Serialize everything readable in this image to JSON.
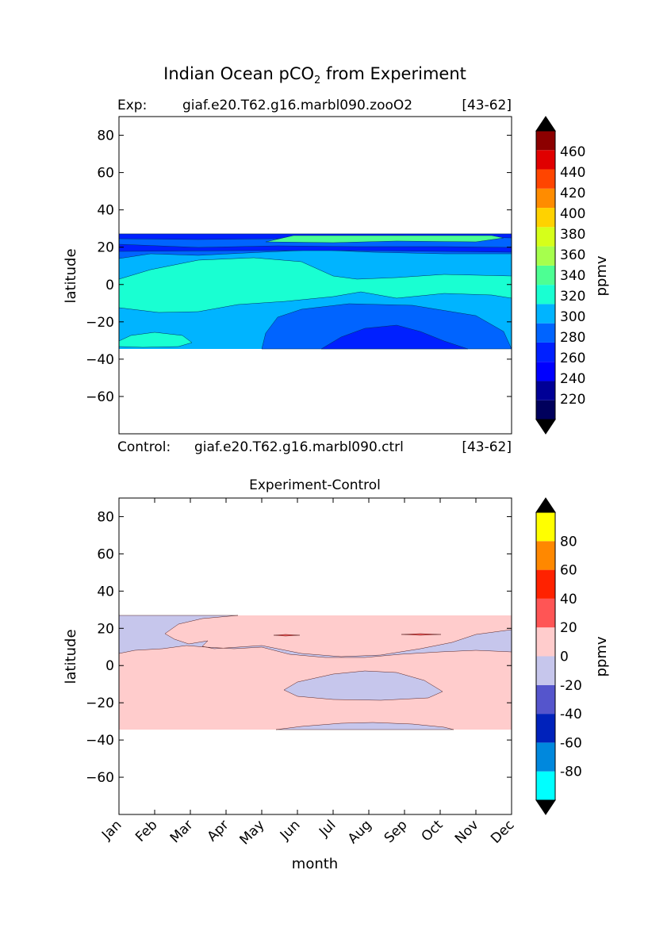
{
  "figure": {
    "title_main": "Indian Ocean pCO",
    "title_sub": "2",
    "title_tail": " from Experiment"
  },
  "chart_data": [
    {
      "type": "heatmap",
      "panel": "top",
      "subtitle_left": "Exp:",
      "subtitle_center": "giaf.e20.T62.g16.marbl090.zooO2",
      "subtitle_right": "[43-62]",
      "xlabel": "",
      "ylabel": "latitude",
      "xlim": [
        0,
        11
      ],
      "ylim": [
        -80,
        90
      ],
      "yticks": [
        80,
        60,
        40,
        20,
        0,
        -20,
        -40,
        -60
      ],
      "ytick_labels": [
        "80",
        "60",
        "40",
        "20",
        "0",
        "−20",
        "−40",
        "−60"
      ],
      "data_lat_range": [
        -34,
        27
      ],
      "approx_regions": [
        {
          "level": "240-260",
          "months": "Jul-Oct",
          "lat": "-20 to -34"
        },
        {
          "level": "260-280",
          "months": "May-Dec",
          "lat": "-5 to -34"
        },
        {
          "level": "280-300",
          "months": "Jan-Dec",
          "lat": "-34 to 20"
        },
        {
          "level": "300-320",
          "months": "Feb-Jul",
          "lat": "-15 to 15"
        },
        {
          "level": "320-340",
          "months": "May-Oct",
          "lat": "24 to 27"
        },
        {
          "level": "240-280",
          "months": "Jan-Dec",
          "lat": "17 to 27"
        }
      ],
      "colorbar": {
        "label": "ppmv",
        "ticks": [
          "460",
          "440",
          "420",
          "400",
          "380",
          "360",
          "340",
          "320",
          "300",
          "280",
          "260",
          "240",
          "220"
        ],
        "levels": [
          200,
          220,
          240,
          260,
          280,
          300,
          320,
          340,
          360,
          380,
          400,
          420,
          440,
          460,
          480
        ],
        "colors": [
          "#00005c",
          "#000096",
          "#0000ff",
          "#0020ff",
          "#0064ff",
          "#00b4ff",
          "#19ffd2",
          "#4dff93",
          "#a6ff4d",
          "#d6ff1a",
          "#ffd200",
          "#ff8c00",
          "#ff4500",
          "#e00000",
          "#8c0000"
        ],
        "extend_low": "#000000",
        "extend_high": "#000000"
      }
    },
    {
      "type": "heatmap",
      "panel": "bottom",
      "label_control_left": "Control:",
      "label_control_center": "giaf.e20.T62.g16.marbl090.ctrl",
      "label_control_right": "[43-62]",
      "title": "Experiment-Control",
      "xlabel": "month",
      "ylabel": "latitude",
      "xlim": [
        0,
        11
      ],
      "ylim": [
        -80,
        90
      ],
      "xticks": [
        "Jan",
        "Feb",
        "Mar",
        "Apr",
        "May",
        "Jun",
        "Jul",
        "Aug",
        "Sep",
        "Oct",
        "Nov",
        "Dec"
      ],
      "yticks": [
        80,
        60,
        40,
        20,
        0,
        -20,
        -40,
        -60
      ],
      "ytick_labels": [
        "80",
        "60",
        "40",
        "20",
        "0",
        "−20",
        "−40",
        "−60"
      ],
      "data_lat_range": [
        -34,
        27
      ],
      "approx_regions": [
        {
          "level": "0-20",
          "months": "Jan-Dec",
          "lat": "-34 to 27"
        },
        {
          "level": "-20-0",
          "months": "Jan-Dec",
          "lat": "8 to 27"
        },
        {
          "level": "-20-0",
          "months": "Jun-Oct",
          "lat": "-3 to -18"
        },
        {
          "level": "-20-0",
          "months": "May-Oct",
          "lat": "-30 to -34"
        }
      ],
      "colorbar": {
        "label": "ppmv",
        "ticks": [
          "80",
          "60",
          "40",
          "20",
          "0",
          "-20",
          "-40",
          "-60",
          "-80"
        ],
        "levels": [
          -100,
          -80,
          -60,
          -40,
          -20,
          0,
          20,
          40,
          60,
          80,
          100
        ],
        "colors": [
          "#00ffff",
          "#0088dd",
          "#0022bb",
          "#5555cc",
          "#c6c6ec",
          "#ffcccc",
          "#ff5555",
          "#ff2200",
          "#ff8800",
          "#ffff00"
        ],
        "extend_low": "#000000",
        "extend_high": "#000000"
      }
    }
  ]
}
